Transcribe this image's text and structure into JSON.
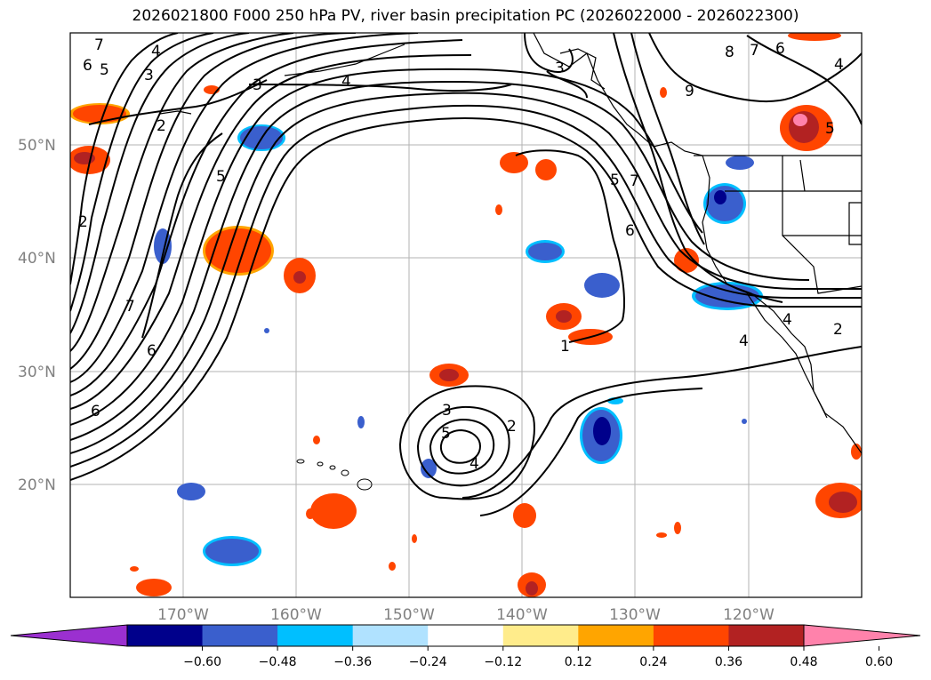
{
  "title": "2026021800 F000 250 hPa PV, river basin precipitation PC (2026022000 - 2026022300)",
  "lat_labels": [
    "50°N",
    "40°N",
    "30°N",
    "20°N"
  ],
  "lon_labels": [
    "170°W",
    "160°W",
    "150°W",
    "140°W",
    "130°W",
    "120°W"
  ],
  "colorbar": {
    "ticks": [
      "−0.60",
      "−0.48",
      "−0.36",
      "−0.24",
      "−0.12",
      "0.12",
      "0.24",
      "0.36",
      "0.48",
      "0.60"
    ],
    "colors": [
      "#9b30d0",
      "#00008b",
      "#3a5fcd",
      "#00bfff",
      "#b0e2ff",
      "#ffffff",
      "#ffec8b",
      "#ffa500",
      "#ff4500",
      "#b22222",
      "#ff82ab"
    ]
  },
  "contour_labels": [
    "7",
    "6",
    "5",
    "4",
    "3",
    "3",
    "4",
    "2",
    "2",
    "5",
    "7",
    "6",
    "6",
    "1",
    "2",
    "3",
    "4",
    "5",
    "3",
    "5",
    "4",
    "2",
    "5",
    "7",
    "6",
    "9",
    "8",
    "7",
    "6",
    "4",
    "5",
    "4",
    "3",
    "2"
  ]
}
